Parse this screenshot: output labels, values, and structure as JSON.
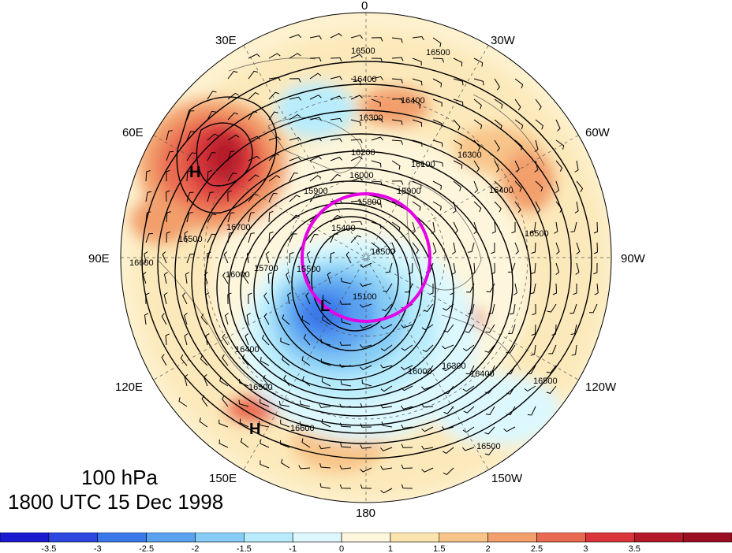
{
  "map": {
    "projection": "polar-stereographic-north",
    "level_label": "100 hPa",
    "time_label": "1800 UTC 15 Dec 1998",
    "longitude_labels": [
      "0",
      "30W",
      "60W",
      "90W",
      "120W",
      "150W",
      "180",
      "150E",
      "120E",
      "90E",
      "60E",
      "30E"
    ],
    "contour_labels": [
      "16500",
      "16500",
      "16400",
      "16400",
      "16300",
      "16300",
      "16200",
      "16100",
      "16000",
      "15900",
      "15900",
      "15800",
      "15400",
      "15700",
      "16000",
      "16500",
      "16500",
      "16600",
      "16700",
      "16500",
      "15500",
      "15100",
      "16000",
      "16300",
      "16400",
      "16500",
      "16500",
      "16600",
      "16400",
      "16400",
      "16500"
    ],
    "pressure_centers": [
      {
        "label": "H",
        "region": "western Siberia"
      },
      {
        "label": "H",
        "region": "north Pacific"
      },
      {
        "label": "L",
        "region": "polar vortex"
      }
    ],
    "highlight": {
      "shape": "circle",
      "color": "#e600e6"
    }
  },
  "colorbar": {
    "colors": [
      "#1a1ad1",
      "#2b47e0",
      "#3a78ea",
      "#5aa2f0",
      "#86ccf6",
      "#b8ecfc",
      "#dcf8fe",
      "#fdf6dc",
      "#fbe3ae",
      "#f8c489",
      "#f29f6c",
      "#ea6a51",
      "#d9353a",
      "#b51a2a",
      "#9a1020"
    ],
    "ticks": [
      "-3.5",
      "-3",
      "-2.5",
      "-2",
      "-1.5",
      "-1",
      "0",
      "1",
      "1.5",
      "2",
      "2.5",
      "3",
      "3.5"
    ]
  }
}
